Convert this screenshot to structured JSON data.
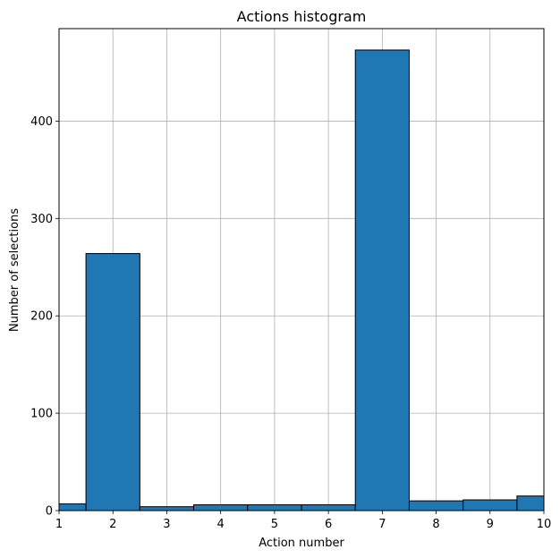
{
  "chart_data": {
    "type": "bar",
    "title": "Actions histogram",
    "xlabel": "Action number",
    "ylabel": "Number of selections",
    "xlim": [
      1,
      10
    ],
    "ylim": [
      0,
      495
    ],
    "grid": true,
    "bar_color": "#1f77b4",
    "edge_color": "#000000",
    "bins": [
      {
        "x0": 1.0,
        "x1": 1.5,
        "value": 7
      },
      {
        "x0": 1.5,
        "x1": 2.5,
        "value": 264
      },
      {
        "x0": 2.5,
        "x1": 3.5,
        "value": 4
      },
      {
        "x0": 3.5,
        "x1": 4.5,
        "value": 6
      },
      {
        "x0": 4.5,
        "x1": 5.5,
        "value": 6
      },
      {
        "x0": 5.5,
        "x1": 6.5,
        "value": 6
      },
      {
        "x0": 6.5,
        "x1": 7.5,
        "value": 473
      },
      {
        "x0": 7.5,
        "x1": 8.5,
        "value": 10
      },
      {
        "x0": 8.5,
        "x1": 9.5,
        "value": 11
      },
      {
        "x0": 9.5,
        "x1": 10.0,
        "value": 15
      }
    ],
    "x_ticks": [
      1,
      2,
      3,
      4,
      5,
      6,
      7,
      8,
      9,
      10
    ],
    "y_ticks": [
      0,
      100,
      200,
      300,
      400
    ]
  }
}
